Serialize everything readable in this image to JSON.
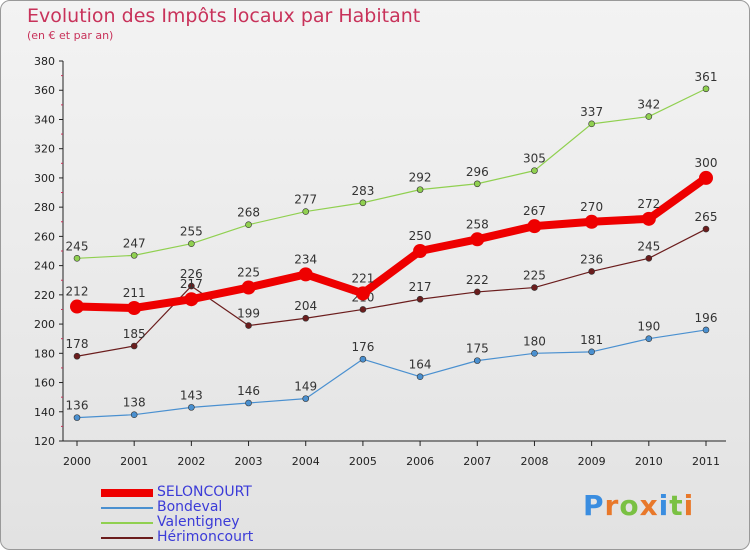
{
  "header": {
    "title": "Evolution des Impôts locaux par Habitant",
    "subtitle": "(en € et par an)"
  },
  "chart_data": {
    "type": "line",
    "title": "Evolution des Impôts locaux par Habitant",
    "subtitle": "(en € et par an)",
    "xlabel": "",
    "ylabel": "",
    "x": [
      "2000",
      "2001",
      "2002",
      "2003",
      "2004",
      "2005",
      "2006",
      "2007",
      "2008",
      "2009",
      "2010",
      "2011"
    ],
    "ylim": [
      120,
      380
    ],
    "yticks": [
      120,
      140,
      160,
      180,
      200,
      220,
      240,
      260,
      280,
      300,
      320,
      340,
      360,
      380
    ],
    "grid": false,
    "legend_position": "bottom-left",
    "series": [
      {
        "name": "SELONCOURT",
        "color": "#ee0000",
        "width": 8,
        "values": [
          212,
          211,
          217,
          225,
          234,
          221,
          250,
          258,
          267,
          270,
          272,
          300
        ],
        "labels": [
          "212",
          "211",
          "217",
          "225",
          "234",
          "221",
          "250",
          "258",
          "267",
          "270",
          "272",
          "300"
        ]
      },
      {
        "name": "Bondeval",
        "color": "#4a90d0",
        "width": 1.2,
        "values": [
          136,
          138,
          143,
          146,
          149,
          176,
          164,
          175,
          180,
          181,
          190,
          196
        ],
        "labels": [
          "136",
          "138",
          "143",
          "146",
          "149",
          "176",
          "164",
          "175",
          "180",
          "181",
          "190",
          "196"
        ]
      },
      {
        "name": "Valentigney",
        "color": "#90d050",
        "width": 1.2,
        "values": [
          245,
          247,
          255,
          268,
          277,
          283,
          292,
          296,
          305,
          337,
          342,
          361
        ],
        "labels": [
          "245",
          "247",
          "255",
          "268",
          "277",
          "283",
          "292",
          "296",
          "305",
          "337",
          "342",
          "361"
        ]
      },
      {
        "name": "Hérimoncourt",
        "color": "#6b1d1d",
        "width": 1.2,
        "values": [
          178,
          185,
          226,
          199,
          204,
          210,
          217,
          222,
          225,
          236,
          245,
          265
        ],
        "labels": [
          "178",
          "185",
          "226",
          "199",
          "204",
          "210",
          "217",
          "222",
          "225",
          "236",
          "245",
          "265"
        ]
      }
    ]
  },
  "logo": {
    "text": "Proxiti",
    "letters": [
      "P",
      "r",
      "o",
      "x",
      "i",
      "t",
      "i"
    ],
    "colors": [
      "#3a8de0",
      "#e8782a",
      "#7ac143",
      "#e8782a",
      "#3a8de0",
      "#7ac143",
      "#e8782a"
    ]
  }
}
